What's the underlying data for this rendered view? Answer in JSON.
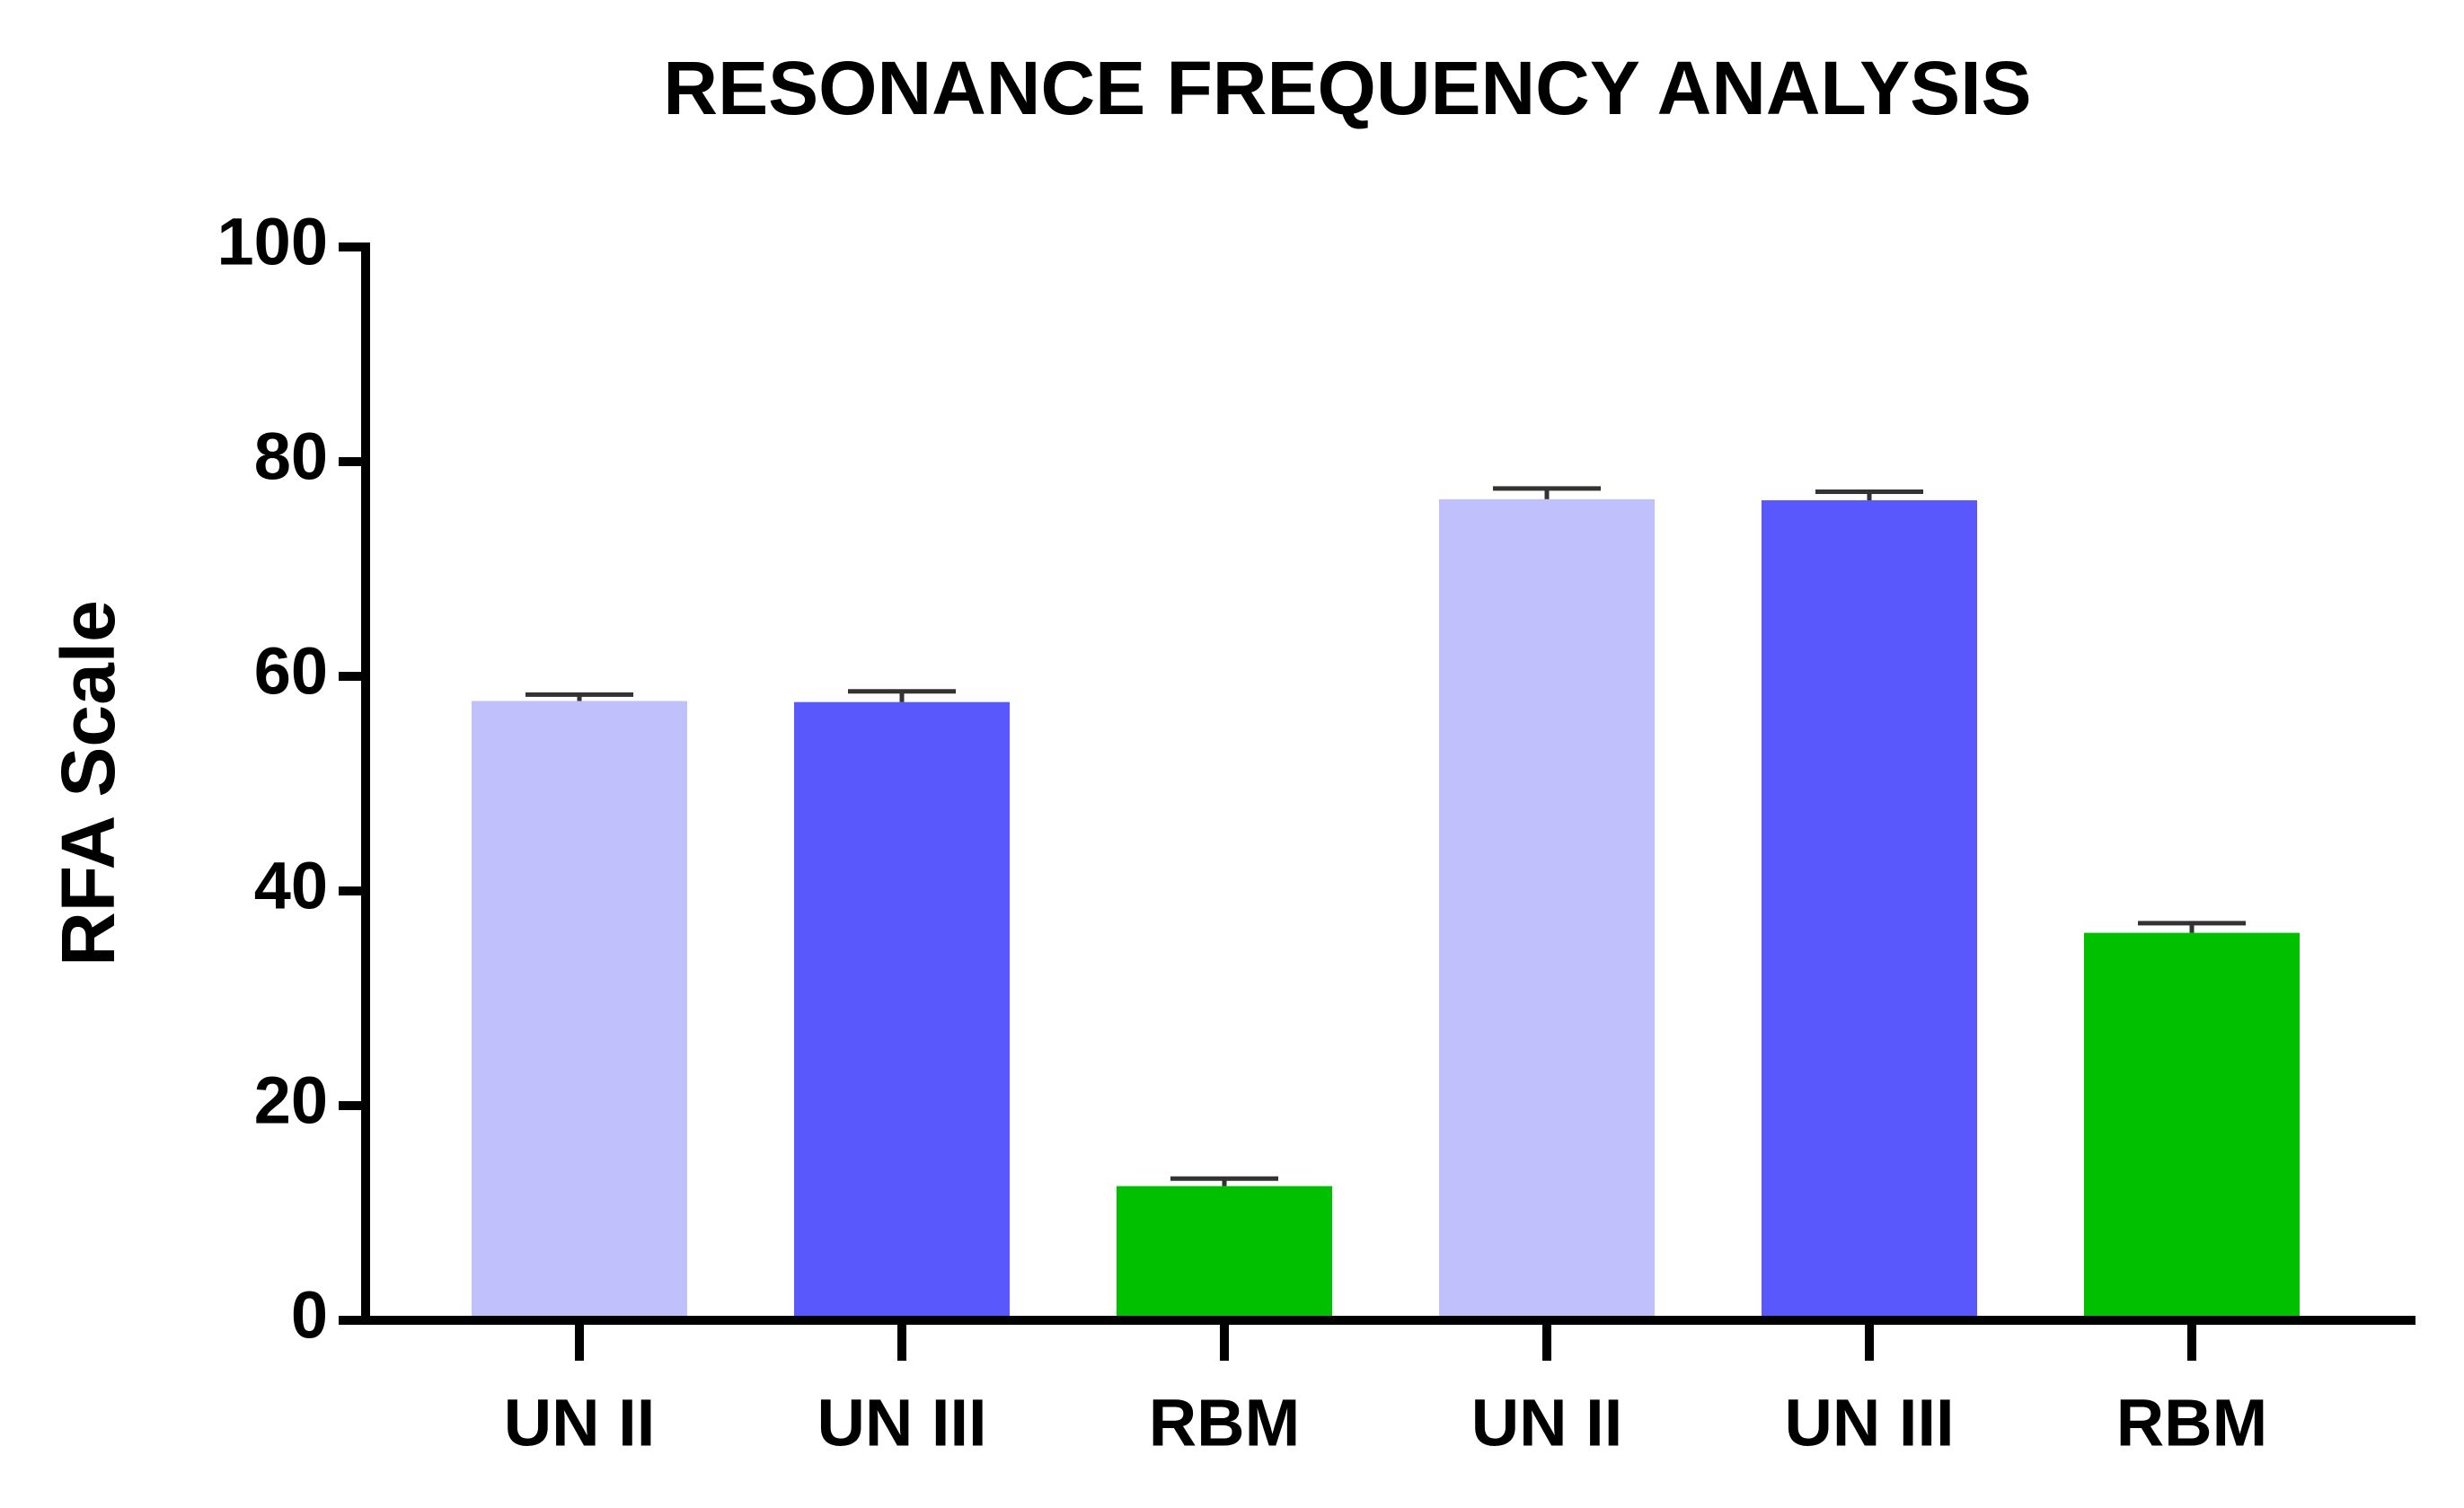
{
  "chart_data": {
    "type": "bar",
    "title": "RESONANCE FREQUENCY ANALYSIS",
    "y_label": "RFA Scale",
    "categories": [
      "UN II",
      "UN III",
      "RBM",
      "UN II",
      "UN III",
      "RBM"
    ],
    "values": [
      57.7,
      57.6,
      12.5,
      76.5,
      76.4,
      36.1
    ],
    "errors": [
      0.6,
      1.0,
      0.7,
      1.0,
      0.8,
      0.9
    ],
    "colors": [
      "#c0c0fc",
      "#5858fc",
      "#00c000",
      "#c0c0fc",
      "#5858fc",
      "#00c000"
    ],
    "ylim": [
      0,
      100
    ],
    "yticks": [
      0,
      20,
      40,
      60,
      80,
      100
    ],
    "grid": false
  }
}
